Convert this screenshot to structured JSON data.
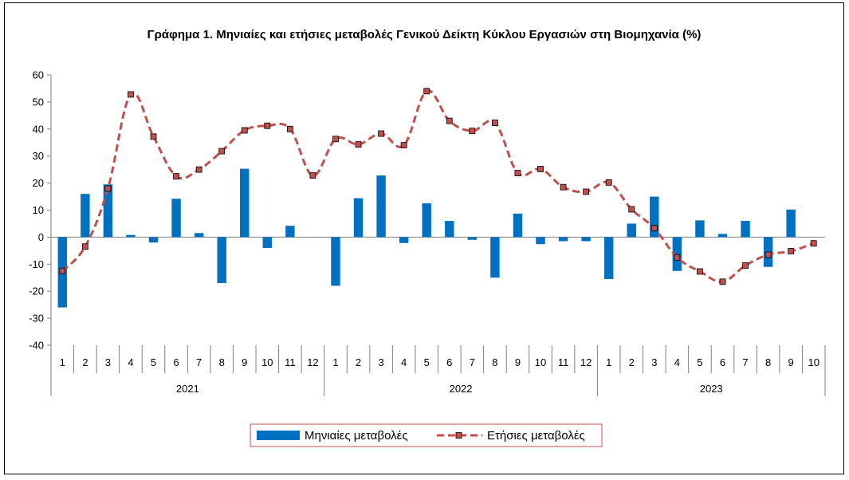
{
  "chart_data": {
    "type": "bar",
    "title": "Γράφημα 1. Μηνιαίες και ετήσιες μεταβολές  Γενικού Δείκτη Κύκλου Εργασιών στη Βιομηχανία (%)",
    "xlabel": "",
    "ylabel": "",
    "ylim": [
      -40,
      60
    ],
    "yticks": [
      "60",
      "50",
      "40",
      "30",
      "20",
      "10",
      "0",
      "-10",
      "-20",
      "-30",
      "-40"
    ],
    "grid": false,
    "legend_position": "bottom",
    "categories": [
      "1",
      "2",
      "3",
      "4",
      "5",
      "6",
      "7",
      "8",
      "9",
      "10",
      "11",
      "12",
      "1",
      "2",
      "3",
      "4",
      "5",
      "6",
      "7",
      "8",
      "9",
      "10",
      "11",
      "12",
      "1",
      "2",
      "3",
      "4",
      "5",
      "6",
      "7",
      "8",
      "9",
      "10"
    ],
    "years": [
      {
        "label": "2021",
        "months": 12
      },
      {
        "label": "2022",
        "months": 12
      },
      {
        "label": "2023",
        "months": 10
      }
    ],
    "series": [
      {
        "name": "Μηνιαίες μεταβολές",
        "type": "bar",
        "color": "#0070C0",
        "values": [
          -26,
          16,
          19.5,
          0.8,
          -2,
          14.2,
          1.5,
          -17,
          25.3,
          -4,
          4.2,
          0,
          -18,
          14.4,
          22.8,
          -2.2,
          12.5,
          6,
          -1,
          -15,
          8.7,
          -2.6,
          -1.5,
          -1.5,
          -15.5,
          5,
          15,
          -12.5,
          6.2,
          1.2,
          6,
          -11,
          10.2,
          0
        ]
      },
      {
        "name": "Ετήσιες μεταβολές",
        "type": "line",
        "color": "#C0504D",
        "values": [
          -12.5,
          -3.5,
          18,
          52.8,
          37.2,
          22.5,
          25,
          31.8,
          39.5,
          41.2,
          40,
          22.8,
          36.3,
          34.3,
          38.3,
          34,
          54,
          43,
          39.3,
          42.3,
          23.7,
          25.2,
          18.5,
          16.8,
          20.2,
          10.3,
          3.3,
          -7.5,
          -12.7,
          -16.5,
          -10.5,
          -6.5,
          -5.2,
          -2.3
        ]
      }
    ]
  }
}
